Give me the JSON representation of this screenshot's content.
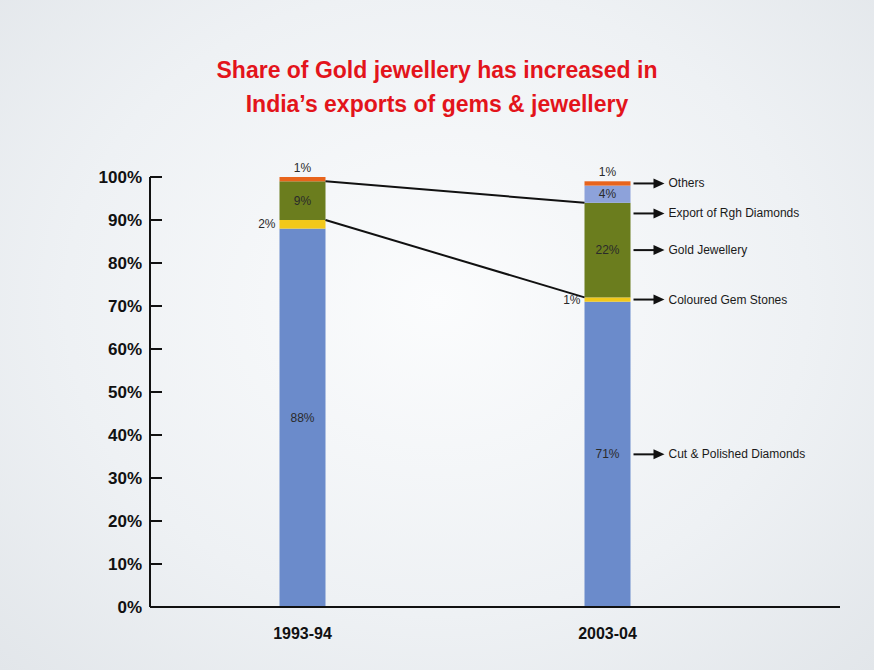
{
  "chart_data": {
    "type": "bar",
    "title": "Share of Gold jewellery has increased in India’s exports of gems & jewellery",
    "categories": [
      "1993-94",
      "2003-04"
    ],
    "series": [
      {
        "name": "Cut & Polished Diamonds",
        "color": "#6b8bcb",
        "values": [
          88,
          71
        ],
        "value_labels": [
          "88%",
          "71%"
        ]
      },
      {
        "name": "Coloured Gem Stones",
        "color": "#f2c81a",
        "values": [
          2,
          1
        ],
        "value_labels": [
          "2%",
          "1%"
        ]
      },
      {
        "name": "Gold Jewellery",
        "color": "#6b7d1e",
        "values": [
          9,
          22
        ],
        "value_labels": [
          "9%",
          "22%"
        ]
      },
      {
        "name": "Export of Rgh Diamonds",
        "color": "#8da2da",
        "values": [
          null,
          4
        ],
        "value_labels": [
          null,
          "4%"
        ]
      },
      {
        "name": "Others",
        "color": "#e8641c",
        "values": [
          1,
          1
        ],
        "value_labels": [
          "1%",
          "1%"
        ]
      }
    ],
    "stacked": true,
    "data_labels": true,
    "legend": "right",
    "grid": false,
    "ylim": [
      0,
      100
    ],
    "yticks": [
      {
        "value": 0,
        "label": "0%"
      },
      {
        "value": 10,
        "label": "10%"
      },
      {
        "value": 20,
        "label": "20%"
      },
      {
        "value": 30,
        "label": "30%"
      },
      {
        "value": 40,
        "label": "40%"
      },
      {
        "value": 50,
        "label": "50%"
      },
      {
        "value": 60,
        "label": "60%"
      },
      {
        "value": 70,
        "label": "70%"
      },
      {
        "value": 80,
        "label": "80%"
      },
      {
        "value": 90,
        "label": "90%"
      },
      {
        "value": 100,
        "label": "100%"
      }
    ]
  }
}
